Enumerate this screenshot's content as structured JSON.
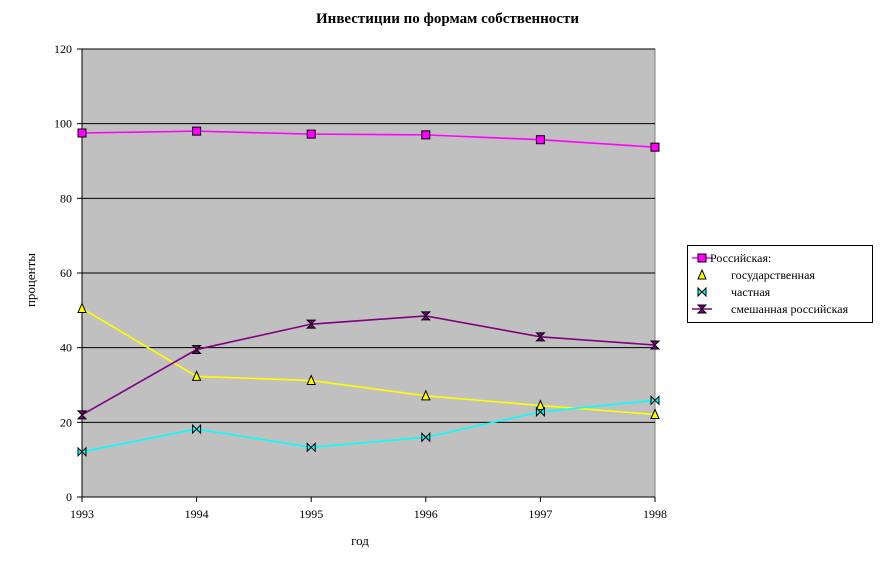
{
  "chart_data": {
    "type": "line",
    "title": "Инвестиции по формам собственности",
    "xlabel": "год",
    "ylabel": "проценты",
    "x": [
      "1993",
      "1994",
      "1995",
      "1996",
      "1997",
      "1998"
    ],
    "ylim": [
      0,
      120
    ],
    "yticks": [
      "0",
      "20",
      "40",
      "60",
      "80",
      "100",
      "120"
    ],
    "grid": true,
    "plot_background": "#c0c0c0",
    "legend_position": "right",
    "series": [
      {
        "name": "Российская:",
        "color": "#ff00ff",
        "marker": "square",
        "values": [
          97.5,
          98.0,
          97.2,
          97.0,
          95.7,
          93.7
        ]
      },
      {
        "name": "государственная",
        "color": "#ffff00",
        "marker": "triangle",
        "values": [
          50.5,
          32.3,
          31.2,
          27.1,
          24.5,
          22.1
        ]
      },
      {
        "name": "частная",
        "color": "#00ffff",
        "marker": "bowtie",
        "values": [
          12.1,
          18.2,
          13.3,
          16.0,
          22.8,
          25.9
        ]
      },
      {
        "name": "смешанная российская",
        "color": "#800080",
        "marker": "hourglass",
        "values": [
          22.0,
          39.5,
          46.3,
          48.5,
          42.9,
          40.7
        ]
      }
    ]
  }
}
